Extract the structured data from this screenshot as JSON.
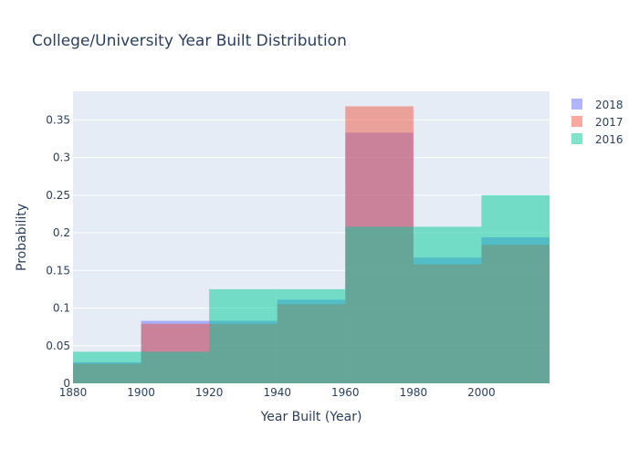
{
  "chart_data": {
    "type": "bar",
    "title": "College/University Year Built Distribution",
    "xlabel": "Year Built (Year)",
    "ylabel": "Probability",
    "x_ticks": [
      1880,
      1900,
      1920,
      1940,
      1960,
      1980,
      2000
    ],
    "y_ticks": [
      0,
      0.05,
      0.1,
      0.15,
      0.2,
      0.25,
      0.3,
      0.35
    ],
    "y_tick_labels": [
      "0",
      "0.05",
      "0.1",
      "0.15",
      "0.2",
      "0.25",
      "0.3",
      "0.35"
    ],
    "xlim": [
      1880,
      2020
    ],
    "ylim": [
      0,
      0.388
    ],
    "bins": [
      {
        "start": 1880,
        "end": 1900
      },
      {
        "start": 1900,
        "end": 1920
      },
      {
        "start": 1920,
        "end": 1940
      },
      {
        "start": 1940,
        "end": 1960
      },
      {
        "start": 1960,
        "end": 1980
      },
      {
        "start": 1980,
        "end": 2000
      },
      {
        "start": 2000,
        "end": 2020
      }
    ],
    "grid": true,
    "legend_position": "top-right",
    "series": [
      {
        "name": "2018",
        "color": "#636efa",
        "values": [
          0.028,
          0.083,
          0.083,
          0.111,
          0.333,
          0.167,
          0.194
        ]
      },
      {
        "name": "2017",
        "color": "#ef553b",
        "values": [
          0.026,
          0.079,
          0.079,
          0.105,
          0.368,
          0.158,
          0.184
        ]
      },
      {
        "name": "2016",
        "color": "#00cc96",
        "values": [
          0.042,
          0.042,
          0.125,
          0.125,
          0.208,
          0.208,
          0.25
        ]
      }
    ]
  }
}
